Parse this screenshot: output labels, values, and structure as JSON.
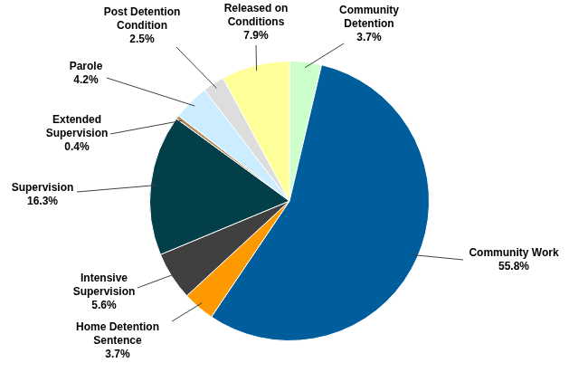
{
  "chart_data": {
    "type": "pie",
    "categories": [
      "Community Detention",
      "Community Work",
      "Home Detention Sentence",
      "Intensive Supervision",
      "Supervision",
      "Extended Supervision",
      "Parole",
      "Post Detention Condition",
      "Released on Conditions"
    ],
    "values": [
      3.7,
      55.8,
      3.7,
      5.6,
      16.3,
      0.4,
      4.2,
      2.5,
      7.9
    ],
    "value_labels": [
      "3.7%",
      "55.8%",
      "3.7%",
      "5.6%",
      "16.3%",
      "0.4%",
      "4.2%",
      "2.5%",
      "7.9%"
    ],
    "colors": [
      "#ccffcc",
      "#005e9c",
      "#ff9900",
      "#404040",
      "#033f48",
      "#b08a5c",
      "#ccecff",
      "#dddddd",
      "#ffff99"
    ],
    "data_labels": true
  }
}
